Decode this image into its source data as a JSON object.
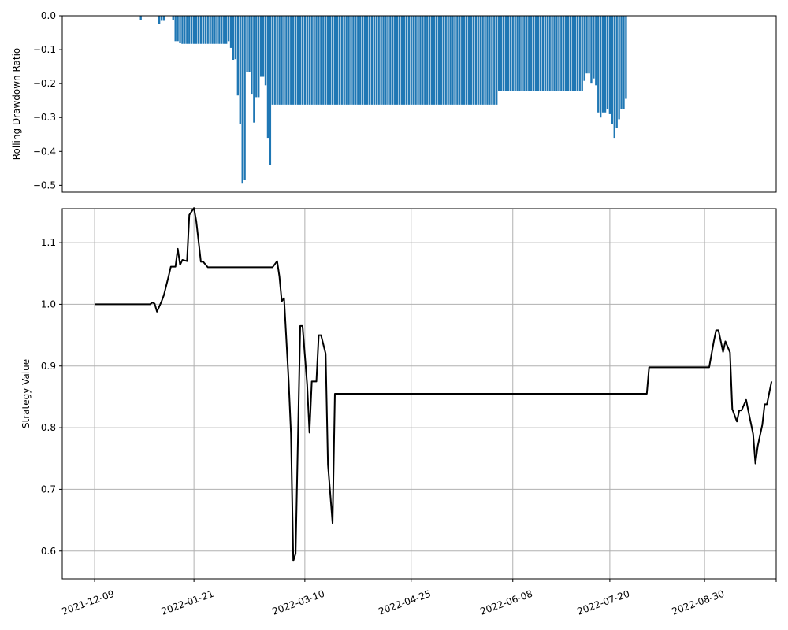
{
  "chart_data": [
    {
      "type": "bar",
      "ylabel": "Rolling Drawdown Ratio",
      "ylim": [
        -0.52,
        0.0
      ],
      "yticks": [
        0.0,
        -0.1,
        -0.2,
        -0.3,
        -0.4,
        -0.5
      ],
      "ytick_labels": [
        "0.0",
        "−0.1",
        "−0.2",
        "−0.3",
        "−0.4",
        "−0.5"
      ],
      "grid": false,
      "xaxis_visible": false,
      "color": "#1f77b4",
      "x_start": "2021-12-09",
      "x_step_days": 1,
      "values": [
        0,
        0,
        0,
        0,
        0,
        0,
        0,
        0,
        0,
        0,
        0,
        0,
        0,
        0,
        0,
        0,
        0,
        0,
        0,
        0,
        -0.012,
        0,
        0,
        0,
        0,
        0,
        0,
        0,
        -0.025,
        -0.015,
        -0.015,
        0,
        0,
        0,
        -0.013,
        -0.075,
        -0.075,
        -0.08,
        -0.083,
        -0.083,
        -0.083,
        -0.083,
        -0.083,
        -0.083,
        -0.083,
        -0.083,
        -0.083,
        -0.083,
        -0.083,
        -0.083,
        -0.083,
        -0.083,
        -0.083,
        -0.083,
        -0.083,
        -0.083,
        -0.083,
        -0.083,
        -0.075,
        -0.095,
        -0.13,
        -0.128,
        -0.235,
        -0.318,
        -0.495,
        -0.485,
        -0.165,
        -0.165,
        -0.23,
        -0.315,
        -0.24,
        -0.24,
        -0.18,
        -0.18,
        -0.205,
        -0.36,
        -0.44,
        -0.262,
        -0.262,
        -0.262,
        -0.262,
        -0.262,
        -0.262,
        -0.262,
        -0.262,
        -0.262,
        -0.262,
        -0.262,
        -0.262,
        -0.262,
        -0.262,
        -0.262,
        -0.262,
        -0.262,
        -0.262,
        -0.262,
        -0.262,
        -0.262,
        -0.262,
        -0.262,
        -0.262,
        -0.262,
        -0.262,
        -0.262,
        -0.262,
        -0.262,
        -0.262,
        -0.262,
        -0.262,
        -0.262,
        -0.262,
        -0.262,
        -0.262,
        -0.262,
        -0.262,
        -0.262,
        -0.262,
        -0.262,
        -0.262,
        -0.262,
        -0.262,
        -0.262,
        -0.262,
        -0.262,
        -0.262,
        -0.262,
        -0.262,
        -0.262,
        -0.262,
        -0.262,
        -0.262,
        -0.262,
        -0.262,
        -0.262,
        -0.262,
        -0.262,
        -0.262,
        -0.262,
        -0.262,
        -0.262,
        -0.262,
        -0.262,
        -0.262,
        -0.262,
        -0.262,
        -0.262,
        -0.262,
        -0.262,
        -0.262,
        -0.262,
        -0.262,
        -0.262,
        -0.262,
        -0.262,
        -0.262,
        -0.262,
        -0.262,
        -0.262,
        -0.262,
        -0.262,
        -0.262,
        -0.262,
        -0.262,
        -0.262,
        -0.262,
        -0.262,
        -0.262,
        -0.262,
        -0.262,
        -0.262,
        -0.262,
        -0.262,
        -0.262,
        -0.262,
        -0.262,
        -0.222,
        -0.222,
        -0.222,
        -0.222,
        -0.222,
        -0.222,
        -0.222,
        -0.222,
        -0.222,
        -0.222,
        -0.222,
        -0.222,
        -0.222,
        -0.222,
        -0.222,
        -0.222,
        -0.222,
        -0.222,
        -0.222,
        -0.222,
        -0.222,
        -0.222,
        -0.222,
        -0.222,
        -0.222,
        -0.222,
        -0.222,
        -0.222,
        -0.222,
        -0.222,
        -0.222,
        -0.222,
        -0.222,
        -0.222,
        -0.222,
        -0.222,
        -0.222,
        -0.192,
        -0.17,
        -0.17,
        -0.2,
        -0.185,
        -0.205,
        -0.285,
        -0.3,
        -0.285,
        -0.285,
        -0.275,
        -0.29,
        -0.32,
        -0.36,
        -0.33,
        -0.305,
        -0.275,
        -0.275,
        -0.245
      ]
    },
    {
      "type": "line",
      "ylabel": "Strategy Value",
      "ylim": [
        0.555,
        1.155
      ],
      "yticks": [
        0.6,
        0.7,
        0.8,
        0.9,
        1.0,
        1.1
      ],
      "ytick_labels": [
        "0.6",
        "0.7",
        "0.8",
        "0.9",
        "1.0",
        "1.1"
      ],
      "xlim": [
        "2021-11-25",
        "2022-09-30"
      ],
      "xticks": [
        "2021-12-09",
        "2022-01-21",
        "2022-03-10",
        "2022-04-25",
        "2022-06-08",
        "2022-07-20",
        "2022-08-30",
        "2022-09-30"
      ],
      "xtick_labels": [
        "2021-12-09",
        "2022-01-21",
        "2022-03-10",
        "2022-04-25",
        "2022-06-08",
        "2022-07-20",
        "2022-08-30",
        ""
      ],
      "grid": true,
      "color": "#000000",
      "points": [
        [
          "2021-12-09",
          1.0
        ],
        [
          "2022-01-02",
          1.0
        ],
        [
          "2022-01-03",
          1.003
        ],
        [
          "2022-01-04",
          1.001
        ],
        [
          "2022-01-05",
          0.988
        ],
        [
          "2022-01-07",
          1.005
        ],
        [
          "2022-01-08",
          1.015
        ],
        [
          "2022-01-10",
          1.045
        ],
        [
          "2022-01-11",
          1.061
        ],
        [
          "2022-01-13",
          1.061
        ],
        [
          "2022-01-14",
          1.09
        ],
        [
          "2022-01-15",
          1.064
        ],
        [
          "2022-01-16",
          1.072
        ],
        [
          "2022-01-18",
          1.07
        ],
        [
          "2022-01-19",
          1.145
        ],
        [
          "2022-01-21",
          1.156
        ],
        [
          "2022-01-22",
          1.135
        ],
        [
          "2022-01-24",
          1.069
        ],
        [
          "2022-01-25",
          1.069
        ],
        [
          "2022-01-27",
          1.06
        ],
        [
          "2022-02-24",
          1.06
        ],
        [
          "2022-02-26",
          1.07
        ],
        [
          "2022-02-27",
          1.045
        ],
        [
          "2022-02-28",
          1.005
        ],
        [
          "2022-03-01",
          1.01
        ],
        [
          "2022-03-03",
          0.875
        ],
        [
          "2022-03-04",
          0.79
        ],
        [
          "2022-03-05",
          0.584
        ],
        [
          "2022-03-06",
          0.596
        ],
        [
          "2022-03-08",
          0.965
        ],
        [
          "2022-03-09",
          0.965
        ],
        [
          "2022-03-11",
          0.87
        ],
        [
          "2022-03-12",
          0.792
        ],
        [
          "2022-03-13",
          0.875
        ],
        [
          "2022-03-15",
          0.875
        ],
        [
          "2022-03-16",
          0.95
        ],
        [
          "2022-03-17",
          0.95
        ],
        [
          "2022-03-19",
          0.92
        ],
        [
          "2022-03-20",
          0.74
        ],
        [
          "2022-03-22",
          0.645
        ],
        [
          "2022-03-23",
          0.855
        ],
        [
          "2022-08-05",
          0.855
        ],
        [
          "2022-08-06",
          0.898
        ],
        [
          "2022-09-01",
          0.898
        ],
        [
          "2022-09-03",
          0.94
        ],
        [
          "2022-09-04",
          0.958
        ],
        [
          "2022-09-05",
          0.958
        ],
        [
          "2022-09-07",
          0.923
        ],
        [
          "2022-09-08",
          0.94
        ],
        [
          "2022-09-10",
          0.922
        ],
        [
          "2022-09-11",
          0.83
        ],
        [
          "2022-09-13",
          0.81
        ],
        [
          "2022-09-14",
          0.828
        ],
        [
          "2022-09-15",
          0.828
        ],
        [
          "2022-09-17",
          0.845
        ],
        [
          "2022-09-18",
          0.826
        ],
        [
          "2022-09-20",
          0.79
        ],
        [
          "2022-09-21",
          0.742
        ],
        [
          "2022-09-22",
          0.77
        ],
        [
          "2022-09-24",
          0.805
        ],
        [
          "2022-09-25",
          0.838
        ],
        [
          "2022-09-26",
          0.838
        ],
        [
          "2022-09-28",
          0.875
        ]
      ]
    }
  ]
}
